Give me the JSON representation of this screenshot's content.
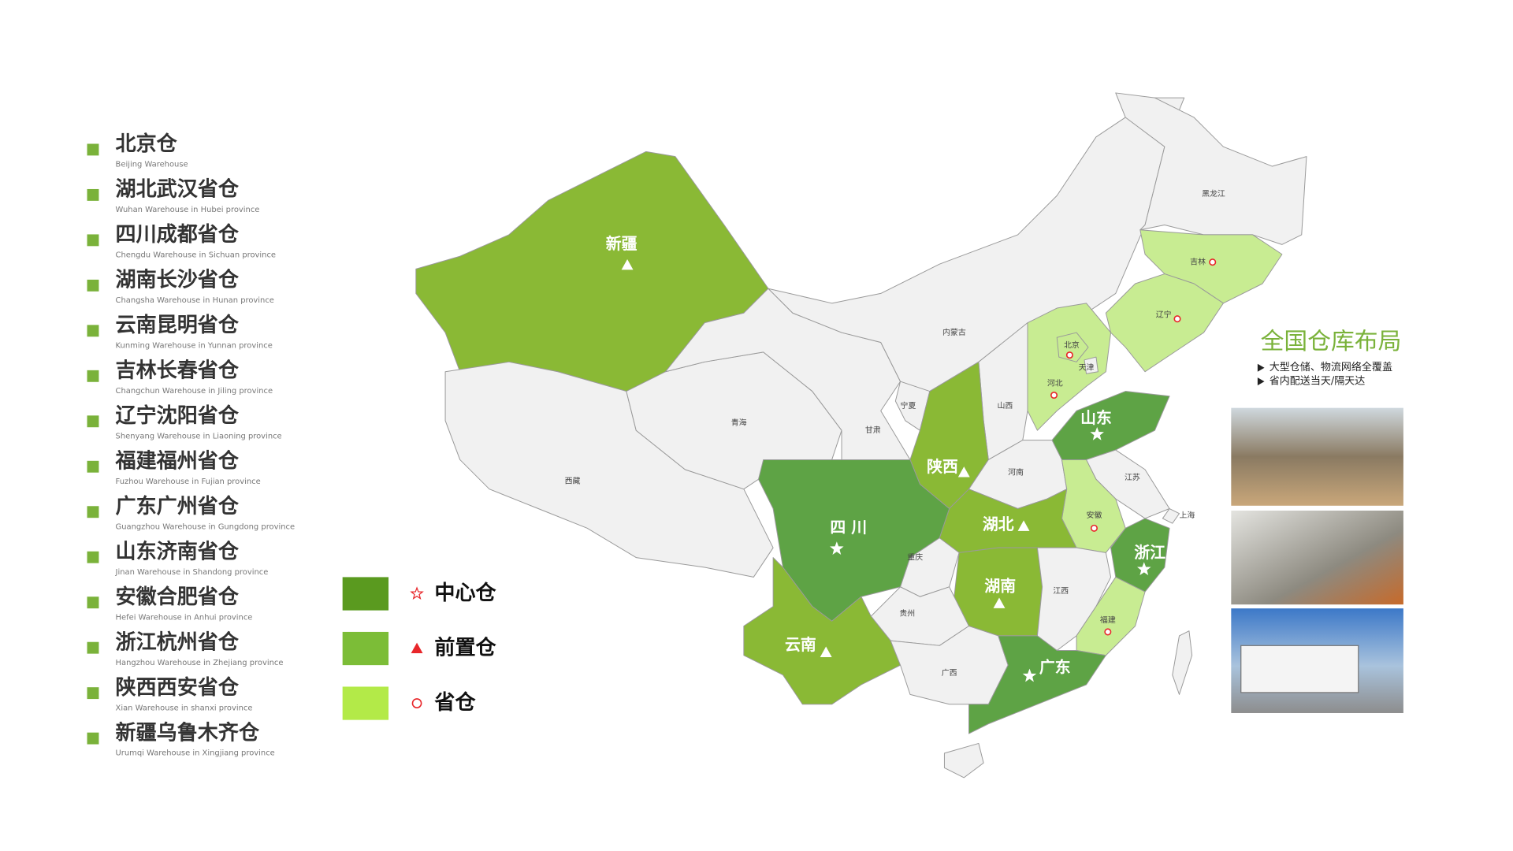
{
  "warehouses": [
    {
      "name": "北京仓",
      "english": "Beijing Warehouse"
    },
    {
      "name": "湖北武汉省仓",
      "english": "Wuhan Warehouse in Hubei province"
    },
    {
      "name": "四川成都省仓",
      "english": "Chengdu Warehouse in Sichuan province"
    },
    {
      "name": "湖南长沙省仓",
      "english": "Changsha Warehouse in Hunan province"
    },
    {
      "name": "云南昆明省仓",
      "english": "Kunming Warehouse in Yunnan province"
    },
    {
      "name": "吉林长春省仓",
      "english": "Changchun Warehouse in Jiling province"
    },
    {
      "name": "辽宁沈阳省仓",
      "english": "Shenyang Warehouse in Liaoning province"
    },
    {
      "name": "福建福州省仓",
      "english": "Fuzhou Warehouse in Fujian province"
    },
    {
      "name": "广东广州省仓",
      "english": "Guangzhou Warehouse in Gungdong province"
    },
    {
      "name": "山东济南省仓",
      "english": "Jinan Warehouse in Shandong province"
    },
    {
      "name": "安徽合肥省仓",
      "english": "Hefei Warehouse in Anhui province"
    },
    {
      "name": "浙江杭州省仓",
      "english": "Hangzhou Warehouse in Zhejiang province"
    },
    {
      "name": "陕西西安省仓",
      "english": "Xian Warehouse in shanxi province"
    },
    {
      "name": "新疆乌鲁木齐仓",
      "english": "Urumqi Warehouse in Xingjiang province"
    }
  ],
  "list_bullet_color": "#7ab23a",
  "legend": [
    {
      "name": "中心仓",
      "tier": "center",
      "color": "#5a9a1f"
    },
    {
      "name": "前置仓",
      "tier": "front",
      "color": "#7cbd37"
    },
    {
      "name": "省仓",
      "tier": "province",
      "color": "#b3ea48"
    }
  ],
  "map_colors": {
    "center": "#5ea345",
    "front": "#8ab935",
    "province": "#c8ec92",
    "none": "#f1f1f1"
  },
  "marker_color": "#e8262a",
  "provinces": [
    {
      "name": "新疆",
      "tier": "front"
    },
    {
      "name": "西藏",
      "tier": "none"
    },
    {
      "name": "青海",
      "tier": "none"
    },
    {
      "name": "甘肃",
      "tier": "none"
    },
    {
      "name": "宁夏",
      "tier": "none"
    },
    {
      "name": "内蒙古",
      "tier": "none"
    },
    {
      "name": "黑龙江",
      "tier": "none"
    },
    {
      "name": "吉林",
      "tier": "province"
    },
    {
      "name": "辽宁",
      "tier": "province"
    },
    {
      "name": "河北",
      "tier": "province"
    },
    {
      "name": "北京",
      "tier": "province"
    },
    {
      "name": "天津",
      "tier": "none"
    },
    {
      "name": "山西",
      "tier": "none"
    },
    {
      "name": "陕西",
      "tier": "front"
    },
    {
      "name": "山东",
      "tier": "center"
    },
    {
      "name": "河南",
      "tier": "none"
    },
    {
      "name": "江苏",
      "tier": "none"
    },
    {
      "name": "上海",
      "tier": "none"
    },
    {
      "name": "安徽",
      "tier": "province"
    },
    {
      "name": "湖北",
      "tier": "front"
    },
    {
      "name": "四 川",
      "tier": "center"
    },
    {
      "name": "重庆",
      "tier": "none"
    },
    {
      "name": "浙江",
      "tier": "center"
    },
    {
      "name": "湖南",
      "tier": "front"
    },
    {
      "name": "江西",
      "tier": "none"
    },
    {
      "name": "贵州",
      "tier": "none"
    },
    {
      "name": "云南",
      "tier": "front"
    },
    {
      "name": "福建",
      "tier": "province"
    },
    {
      "name": "广西",
      "tier": "none"
    },
    {
      "name": "广东",
      "tier": "center"
    }
  ],
  "panel": {
    "title": "全国仓库布局",
    "title_color": "#7ab23a",
    "bullets": [
      "大型仓储、物流网络全覆盖",
      "省内配送当天/隔天达"
    ]
  }
}
